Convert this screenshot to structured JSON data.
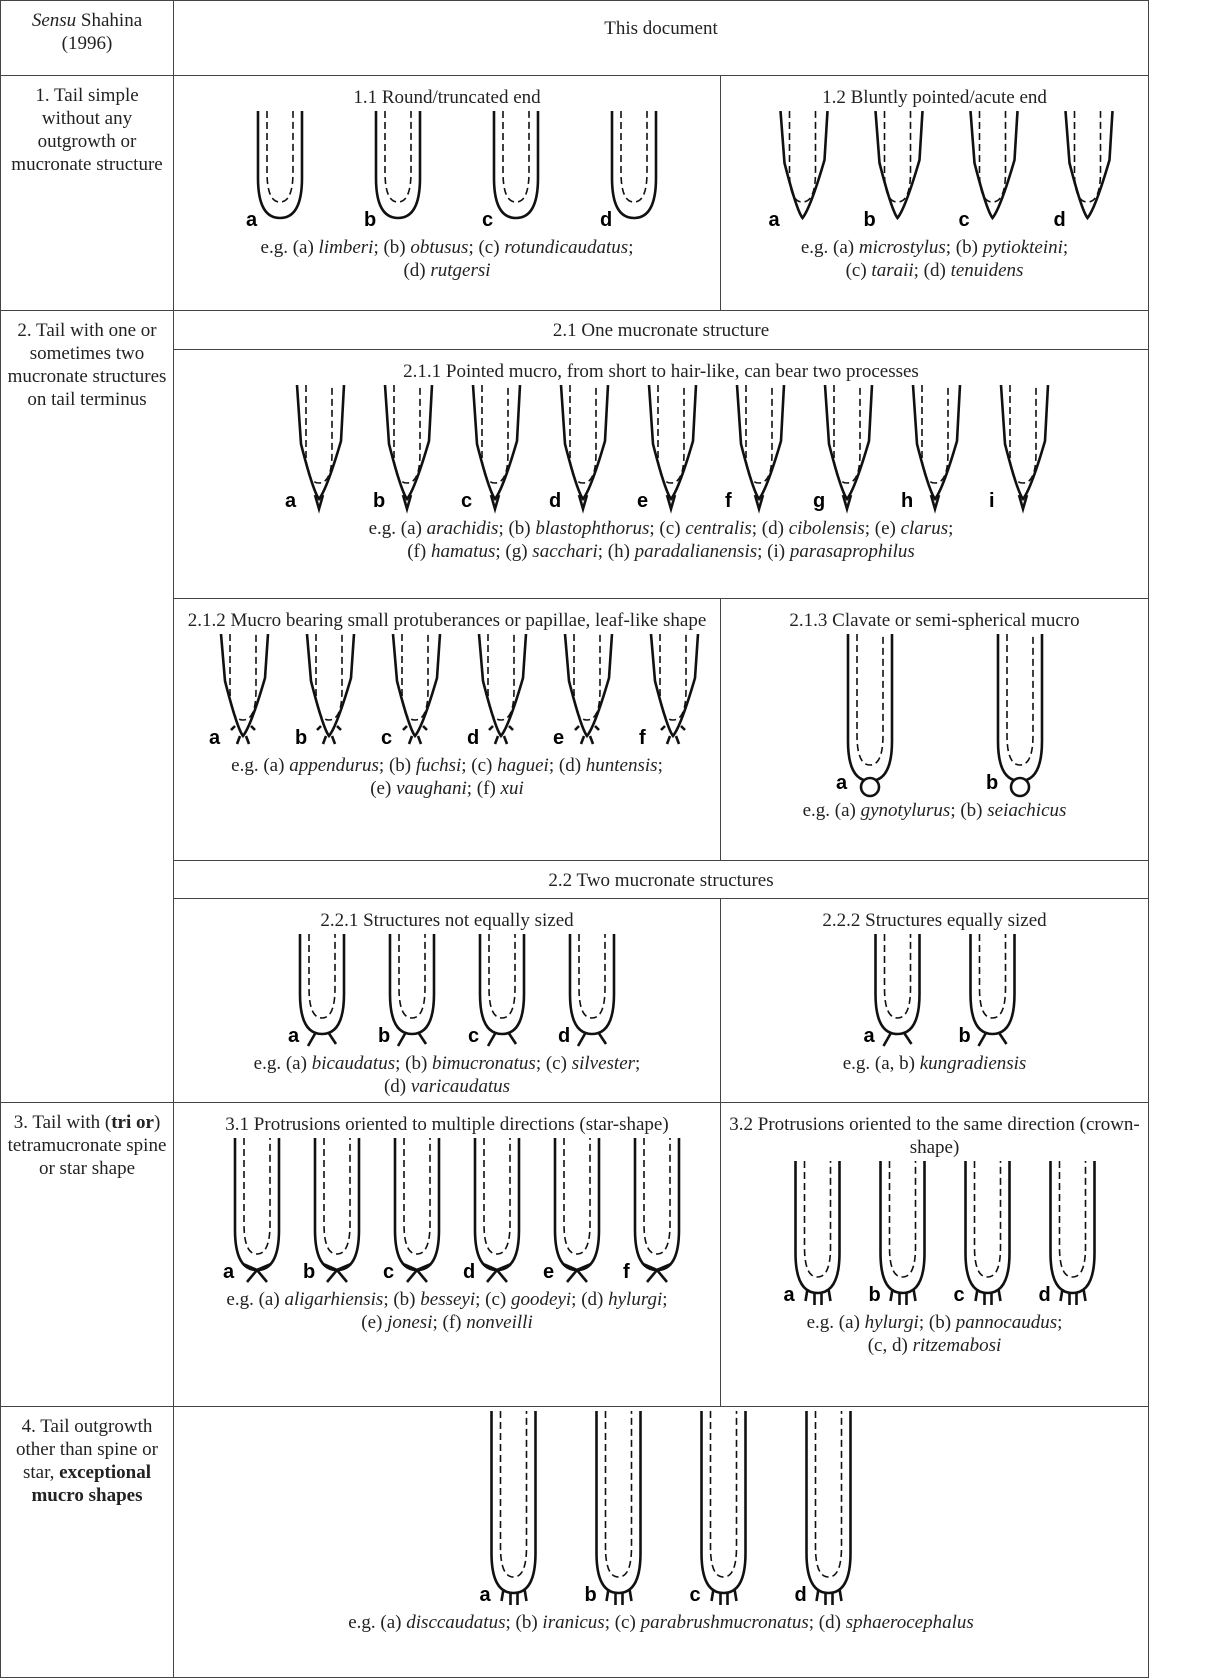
{
  "header": {
    "left": {
      "italic": "Sensu",
      "text": "Shahina (1996)"
    },
    "right": "This document"
  },
  "rows": [
    {
      "label": "1. Tail simple without any outgrowth or mucronate structure",
      "groups": [
        {
          "title": "1.1 Round/truncated end",
          "letters": [
            "a",
            "b",
            "c",
            "d"
          ],
          "caption": [
            [
              "e.g. (a) ",
              "limberi",
              "; (b) ",
              "obtusus",
              "; (c) ",
              "rotundicaudatus",
              ";"
            ],
            [
              "(d) ",
              "rutgersi"
            ]
          ]
        },
        {
          "title": "1.2 Bluntly pointed/acute end",
          "letters": [
            "a",
            "b",
            "c",
            "d"
          ],
          "caption": [
            [
              "e.g. (a) ",
              "microstylus",
              "; (b) ",
              "pytiokteini",
              ";"
            ],
            [
              "(c) ",
              "taraii",
              "; (d) ",
              "tenuidens"
            ]
          ]
        }
      ]
    },
    {
      "label": "2. Tail with one or sometimes two mucronate structures on tail terminus",
      "sections": [
        {
          "title": "2.1 One mucronate structure",
          "groups": [
            {
              "title": "2.1.1 Pointed mucro, from short to hair-like, can bear two processes",
              "letters": [
                "a",
                "b",
                "c",
                "d",
                "e",
                "f",
                "g",
                "h",
                "i"
              ],
              "caption": [
                [
                  "e.g. (a) ",
                  "arachidis",
                  "; (b) ",
                  "blastophthorus",
                  "; (c) ",
                  "centralis",
                  "; (d) ",
                  "cibolensis",
                  "; (e) ",
                  "clarus",
                  ";"
                ],
                [
                  "(f) ",
                  "hamatus",
                  "; (g) ",
                  "sacchari",
                  "; (h) ",
                  "paradalianensis",
                  "; (i) ",
                  "parasaprophilus"
                ]
              ]
            },
            {
              "title": "2.1.2 Mucro bearing small protuberances or papillae, leaf-like shape",
              "letters": [
                "a",
                "b",
                "c",
                "d",
                "e",
                "f"
              ],
              "caption": [
                [
                  "e.g. (a) ",
                  "appendurus",
                  "; (b) ",
                  "fuchsi",
                  "; (c) ",
                  "haguei",
                  "; (d) ",
                  "huntensis",
                  ";"
                ],
                [
                  "(e) ",
                  "vaughani",
                  "; (f) ",
                  "xui"
                ]
              ]
            },
            {
              "title": "2.1.3 Clavate or semi-spherical mucro",
              "letters": [
                "a",
                "b"
              ],
              "caption": [
                [
                  "e.g. (a) ",
                  "gynotylurus",
                  "; (b) ",
                  "seiachicus"
                ]
              ]
            }
          ]
        },
        {
          "title": "2.2 Two mucronate structures",
          "groups": [
            {
              "title": "2.2.1 Structures not equally sized",
              "letters": [
                "a",
                "b",
                "c",
                "d"
              ],
              "caption": [
                [
                  "e.g. (a) ",
                  "bicaudatus",
                  "; (b) ",
                  "bimucronatus",
                  "; (c) ",
                  "silvester",
                  ";"
                ],
                [
                  "(d) ",
                  "varicaudatus"
                ]
              ]
            },
            {
              "title": "2.2.2 Structures equally sized",
              "letters": [
                "a",
                "b"
              ],
              "caption": [
                [
                  "e.g. (a, b) ",
                  "kungradiensis"
                ]
              ]
            }
          ]
        }
      ]
    },
    {
      "label": [
        "3. Tail with (",
        "tri or",
        ") tetramucronate spine or star shape"
      ],
      "groups": [
        {
          "title": "3.1 Protrusions oriented to multiple directions (star-shape)",
          "letters": [
            "a",
            "b",
            "c",
            "d",
            "e",
            "f"
          ],
          "caption": [
            [
              "e.g. (a) ",
              "aligarhiensis",
              "; (b) ",
              "besseyi",
              "; (c) ",
              "goodeyi",
              "; (d) ",
              "hylurgi",
              ";"
            ],
            [
              "(e) ",
              "jonesi",
              "; (f) ",
              "nonveilli"
            ]
          ]
        },
        {
          "title": "3.2 Protrusions oriented to the same direction (crown-shape)",
          "letters": [
            "a",
            "b",
            "c",
            "d"
          ],
          "caption": [
            [
              "e.g. (a) ",
              "hylurgi",
              "; (b) ",
              "pannocaudus",
              ";"
            ],
            [
              "(c, d) ",
              "ritzemabosi"
            ]
          ]
        }
      ]
    },
    {
      "label": [
        "4. Tail outgrowth other than spine or star, ",
        "exceptional mucro shapes"
      ],
      "groups": [
        {
          "letters": [
            "a",
            "b",
            "c",
            "d"
          ],
          "caption": [
            [
              "e.g. (a) ",
              "disccaudatus",
              "; (b) ",
              "iranicus",
              "; (c) ",
              "parabrushmucronatus",
              "; (d) ",
              "sphaerocephalus"
            ]
          ]
        }
      ]
    }
  ]
}
